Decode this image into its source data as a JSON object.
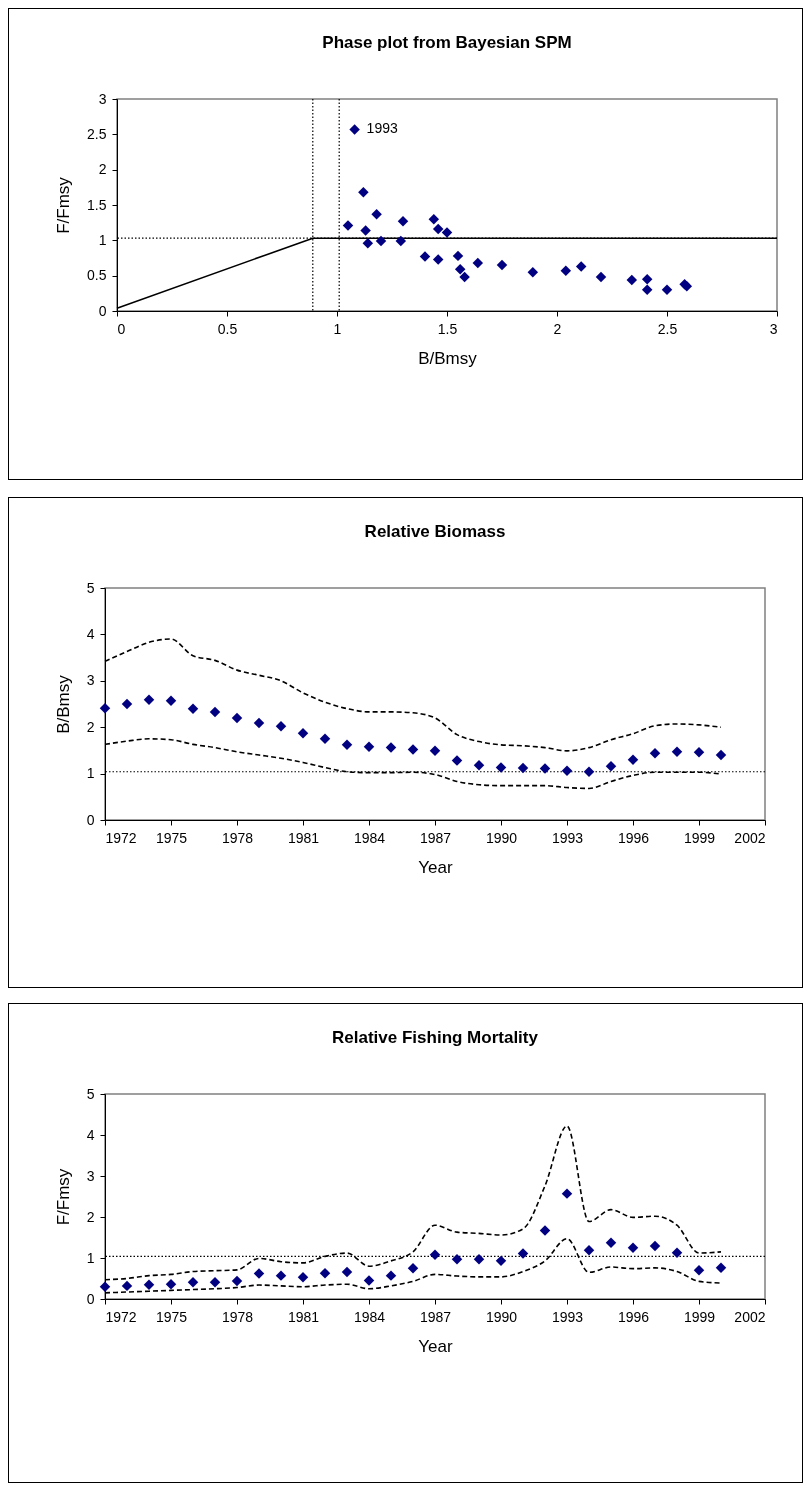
{
  "chart_data": [
    {
      "type": "scatter",
      "title": "Phase plot from Bayesian SPM",
      "xlabel": "B/Bmsy",
      "ylabel": "F/Fmsy",
      "xlim": [
        0,
        3
      ],
      "xticks": [
        0,
        0.5,
        1,
        1.5,
        2,
        2.5,
        3
      ],
      "ylim": [
        0,
        3
      ],
      "yticks": [
        0,
        0.5,
        1,
        1.5,
        2,
        2.5,
        3
      ],
      "series": [
        {
          "type": "scatter",
          "color": "#000080",
          "marker": "diamond",
          "x": [
            1.08,
            1.12,
            1.05,
            1.13,
            1.14,
            1.18,
            1.2,
            1.3,
            1.29,
            1.44,
            1.46,
            1.5,
            1.4,
            1.46,
            1.55,
            1.56,
            1.58,
            1.64,
            1.75,
            1.89,
            2.04,
            2.11,
            2.2,
            2.34,
            2.41,
            2.41,
            2.5,
            2.58,
            2.59
          ],
          "values": [
            2.57,
            1.68,
            1.21,
            1.14,
            0.96,
            1.37,
            0.99,
            1.27,
            0.99,
            1.3,
            1.16,
            1.11,
            0.77,
            0.73,
            0.78,
            0.59,
            0.48,
            0.68,
            0.65,
            0.55,
            0.57,
            0.63,
            0.48,
            0.44,
            0.45,
            0.3,
            0.3,
            0.38,
            0.35
          ]
        },
        {
          "type": "line",
          "color": "#000000",
          "line_style": "solid",
          "x": [
            0,
            0.89,
            3
          ],
          "values": [
            0.04,
            1.03,
            1.03
          ]
        }
      ],
      "ref_lines": [
        {
          "axis": "x",
          "value": 0.89,
          "color": "#000000",
          "line_style": "dotted"
        },
        {
          "axis": "x",
          "value": 1.01,
          "color": "#000000",
          "line_style": "dotted"
        },
        {
          "axis": "y",
          "value": 1.03,
          "color": "#000000",
          "line_style": "dotted"
        }
      ],
      "annotations": [
        {
          "text": "1993",
          "x": 1.08,
          "y": 2.57
        }
      ]
    },
    {
      "type": "scatter",
      "title": "Relative Biomass",
      "xlabel": "Year",
      "ylabel": "B/Bmsy",
      "xlim": [
        1972,
        2002
      ],
      "xticks": [
        1972,
        1975,
        1978,
        1981,
        1984,
        1987,
        1990,
        1993,
        1996,
        1999,
        2002
      ],
      "ylim": [
        0,
        5
      ],
      "yticks": [
        0,
        1,
        2,
        3,
        4,
        5
      ],
      "x": [
        1972,
        1973,
        1974,
        1975,
        1976,
        1977,
        1978,
        1979,
        1980,
        1981,
        1982,
        1983,
        1984,
        1985,
        1986,
        1987,
        1988,
        1989,
        1990,
        1991,
        1992,
        1993,
        1994,
        1995,
        1996,
        1997,
        1998,
        1999,
        2000
      ],
      "series": [
        {
          "type": "line",
          "color": "#000000",
          "line_style": "dashed",
          "values": [
            3.42,
            3.63,
            3.83,
            3.9,
            3.54,
            3.44,
            3.23,
            3.12,
            3.0,
            2.74,
            2.54,
            2.4,
            2.33,
            2.33,
            2.31,
            2.2,
            1.84,
            1.69,
            1.62,
            1.6,
            1.56,
            1.49,
            1.56,
            1.73,
            1.86,
            2.03,
            2.07,
            2.05,
            2.0
          ]
        },
        {
          "type": "line",
          "color": "#000000",
          "line_style": "dashed",
          "values": [
            1.63,
            1.7,
            1.75,
            1.73,
            1.63,
            1.56,
            1.47,
            1.4,
            1.33,
            1.24,
            1.13,
            1.04,
            1.02,
            1.02,
            1.03,
            0.98,
            0.83,
            0.76,
            0.74,
            0.74,
            0.74,
            0.7,
            0.68,
            0.83,
            0.96,
            1.03,
            1.03,
            1.03,
            0.99
          ]
        },
        {
          "type": "scatter",
          "color": "#000080",
          "marker": "diamond",
          "values": [
            2.41,
            2.5,
            2.59,
            2.57,
            2.4,
            2.33,
            2.2,
            2.09,
            2.02,
            1.87,
            1.75,
            1.62,
            1.58,
            1.56,
            1.52,
            1.49,
            1.28,
            1.18,
            1.13,
            1.12,
            1.11,
            1.06,
            1.04,
            1.16,
            1.3,
            1.44,
            1.47,
            1.46,
            1.4
          ]
        }
      ],
      "ref_lines": [
        {
          "axis": "y",
          "value": 1.04,
          "color": "#000000",
          "line_style": "dotted"
        }
      ]
    },
    {
      "type": "scatter",
      "title": "Relative Fishing Mortality",
      "xlabel": "Year",
      "ylabel": "F/Fmsy",
      "xlim": [
        1972,
        2002
      ],
      "xticks": [
        1972,
        1975,
        1978,
        1981,
        1984,
        1987,
        1990,
        1993,
        1996,
        1999,
        2002
      ],
      "ylim": [
        0,
        5
      ],
      "yticks": [
        0,
        1,
        2,
        3,
        4,
        5
      ],
      "x": [
        1972,
        1973,
        1974,
        1975,
        1976,
        1977,
        1978,
        1979,
        1980,
        1981,
        1982,
        1983,
        1984,
        1985,
        1986,
        1987,
        1988,
        1989,
        1990,
        1991,
        1992,
        1993,
        1994,
        1995,
        1996,
        1997,
        1998,
        1999,
        2000
      ],
      "series": [
        {
          "type": "line",
          "color": "#000000",
          "line_style": "dashed",
          "values": [
            0.47,
            0.5,
            0.57,
            0.6,
            0.67,
            0.69,
            0.71,
            0.99,
            0.91,
            0.88,
            1.04,
            1.12,
            0.8,
            0.93,
            1.15,
            1.8,
            1.63,
            1.6,
            1.56,
            1.71,
            2.76,
            4.22,
            1.89,
            2.18,
            1.99,
            2.02,
            1.8,
            1.12,
            1.15
          ]
        },
        {
          "type": "line",
          "color": "#000000",
          "line_style": "dashed",
          "values": [
            0.15,
            0.17,
            0.19,
            0.21,
            0.23,
            0.25,
            0.28,
            0.34,
            0.32,
            0.3,
            0.34,
            0.36,
            0.25,
            0.32,
            0.43,
            0.6,
            0.56,
            0.54,
            0.54,
            0.67,
            0.93,
            1.47,
            0.65,
            0.78,
            0.74,
            0.76,
            0.67,
            0.43,
            0.39
          ]
        },
        {
          "type": "scatter",
          "color": "#000080",
          "marker": "diamond",
          "values": [
            0.3,
            0.32,
            0.35,
            0.36,
            0.41,
            0.41,
            0.44,
            0.62,
            0.57,
            0.53,
            0.63,
            0.66,
            0.45,
            0.57,
            0.75,
            1.08,
            0.97,
            0.97,
            0.93,
            1.11,
            1.67,
            2.57,
            1.19,
            1.37,
            1.25,
            1.29,
            1.13,
            0.7,
            0.76
          ]
        }
      ],
      "ref_lines": [
        {
          "axis": "y",
          "value": 1.04,
          "color": "#000000",
          "line_style": "dotted"
        }
      ]
    }
  ]
}
